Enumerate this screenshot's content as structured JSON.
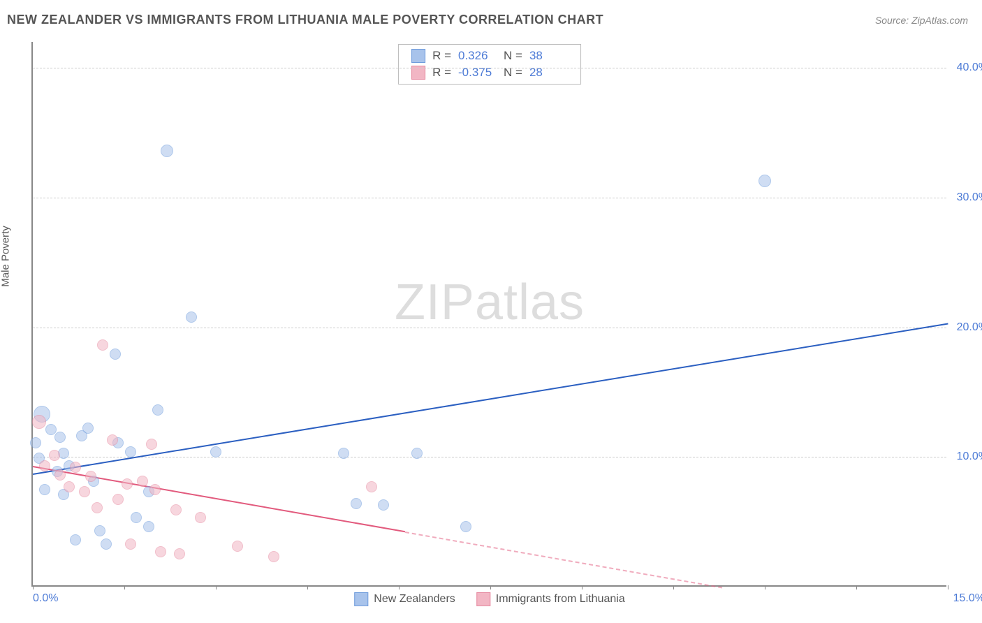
{
  "header": {
    "title": "NEW ZEALANDER VS IMMIGRANTS FROM LITHUANIA MALE POVERTY CORRELATION CHART",
    "source": "Source: ZipAtlas.com"
  },
  "y_axis_label": "Male Poverty",
  "watermark": {
    "zip": "ZIP",
    "atlas": "atlas"
  },
  "chart": {
    "type": "scatter",
    "background_color": "#ffffff",
    "grid_color": "#cccccc",
    "axis_color": "#888888",
    "xlim": [
      0,
      15
    ],
    "ylim": [
      0,
      42
    ],
    "x_ticks": [
      0,
      1.5,
      3.0,
      4.5,
      6.0,
      7.5,
      9.0,
      10.5,
      12.0,
      13.5,
      15.0
    ],
    "x_tick_labels": {
      "min": "0.0%",
      "max": "15.0%"
    },
    "y_gridlines": [
      10,
      20,
      30,
      40
    ],
    "y_tick_labels": [
      "10.0%",
      "20.0%",
      "30.0%",
      "40.0%"
    ],
    "series": [
      {
        "name": "New Zealanders",
        "fill_color": "#a8c3eb",
        "stroke_color": "#6f9cdc",
        "fill_opacity": 0.55,
        "trend": {
          "color": "#2b5fc1",
          "x1": 0,
          "y1": 8.7,
          "x2": 15,
          "y2": 20.3,
          "dash_after_x": null
        },
        "points": [
          {
            "x": 0.15,
            "y": 13.2,
            "r": 12
          },
          {
            "x": 0.05,
            "y": 11.0,
            "r": 8
          },
          {
            "x": 0.1,
            "y": 9.8,
            "r": 8
          },
          {
            "x": 0.3,
            "y": 12.0,
            "r": 8
          },
          {
            "x": 0.45,
            "y": 11.4,
            "r": 8
          },
          {
            "x": 0.5,
            "y": 10.2,
            "r": 8
          },
          {
            "x": 0.4,
            "y": 8.8,
            "r": 8
          },
          {
            "x": 0.2,
            "y": 7.4,
            "r": 8
          },
          {
            "x": 0.5,
            "y": 7.0,
            "r": 8
          },
          {
            "x": 0.6,
            "y": 9.2,
            "r": 8
          },
          {
            "x": 0.8,
            "y": 11.5,
            "r": 8
          },
          {
            "x": 0.9,
            "y": 12.1,
            "r": 8
          },
          {
            "x": 1.0,
            "y": 8.0,
            "r": 8
          },
          {
            "x": 1.1,
            "y": 4.2,
            "r": 8
          },
          {
            "x": 1.2,
            "y": 3.2,
            "r": 8
          },
          {
            "x": 0.7,
            "y": 3.5,
            "r": 8
          },
          {
            "x": 1.4,
            "y": 11.0,
            "r": 8
          },
          {
            "x": 1.35,
            "y": 17.8,
            "r": 8
          },
          {
            "x": 1.6,
            "y": 10.3,
            "r": 8
          },
          {
            "x": 1.7,
            "y": 5.2,
            "r": 8
          },
          {
            "x": 1.9,
            "y": 7.2,
            "r": 8
          },
          {
            "x": 2.05,
            "y": 13.5,
            "r": 8
          },
          {
            "x": 1.9,
            "y": 4.5,
            "r": 8
          },
          {
            "x": 2.2,
            "y": 33.5,
            "r": 9
          },
          {
            "x": 2.6,
            "y": 20.7,
            "r": 8
          },
          {
            "x": 3.0,
            "y": 10.3,
            "r": 8
          },
          {
            "x": 5.1,
            "y": 10.2,
            "r": 8
          },
          {
            "x": 5.3,
            "y": 6.3,
            "r": 8
          },
          {
            "x": 5.75,
            "y": 6.2,
            "r": 8
          },
          {
            "x": 6.3,
            "y": 10.2,
            "r": 8
          },
          {
            "x": 7.1,
            "y": 4.5,
            "r": 8
          },
          {
            "x": 12.0,
            "y": 31.2,
            "r": 9
          }
        ]
      },
      {
        "name": "Immigrants from Lithuania",
        "fill_color": "#f2b6c4",
        "stroke_color": "#e68aa0",
        "fill_opacity": 0.55,
        "trend": {
          "color": "#e25a7d",
          "x1": 0,
          "y1": 9.3,
          "x2": 11.3,
          "y2": 0.0,
          "dash_after_x": 6.1
        },
        "points": [
          {
            "x": 0.1,
            "y": 12.6,
            "r": 10
          },
          {
            "x": 0.2,
            "y": 9.2,
            "r": 8
          },
          {
            "x": 0.35,
            "y": 10.0,
            "r": 8
          },
          {
            "x": 0.45,
            "y": 8.5,
            "r": 8
          },
          {
            "x": 0.6,
            "y": 7.6,
            "r": 8
          },
          {
            "x": 0.7,
            "y": 9.1,
            "r": 8
          },
          {
            "x": 0.85,
            "y": 7.2,
            "r": 8
          },
          {
            "x": 0.95,
            "y": 8.4,
            "r": 8
          },
          {
            "x": 1.05,
            "y": 6.0,
            "r": 8
          },
          {
            "x": 1.15,
            "y": 18.5,
            "r": 8
          },
          {
            "x": 1.3,
            "y": 11.2,
            "r": 8
          },
          {
            "x": 1.4,
            "y": 6.6,
            "r": 8
          },
          {
            "x": 1.55,
            "y": 7.8,
            "r": 8
          },
          {
            "x": 1.6,
            "y": 3.2,
            "r": 8
          },
          {
            "x": 1.8,
            "y": 8.0,
            "r": 8
          },
          {
            "x": 1.95,
            "y": 10.9,
            "r": 8
          },
          {
            "x": 2.0,
            "y": 7.4,
            "r": 8
          },
          {
            "x": 2.1,
            "y": 2.6,
            "r": 8
          },
          {
            "x": 2.35,
            "y": 5.8,
            "r": 8
          },
          {
            "x": 2.4,
            "y": 2.4,
            "r": 8
          },
          {
            "x": 2.75,
            "y": 5.2,
            "r": 8
          },
          {
            "x": 3.35,
            "y": 3.0,
            "r": 8
          },
          {
            "x": 3.95,
            "y": 2.2,
            "r": 8
          },
          {
            "x": 5.55,
            "y": 7.6,
            "r": 8
          }
        ]
      }
    ]
  },
  "stats": {
    "rows": [
      {
        "swatch_fill": "#a8c3eb",
        "swatch_stroke": "#6f9cdc",
        "r_label": "R =",
        "r_val": "0.326",
        "n_label": "N =",
        "n_val": "38"
      },
      {
        "swatch_fill": "#f2b6c4",
        "swatch_stroke": "#e68aa0",
        "r_label": "R =",
        "r_val": "-0.375",
        "n_label": "N =",
        "n_val": "28"
      }
    ]
  },
  "legend": {
    "items": [
      {
        "swatch_fill": "#a8c3eb",
        "swatch_stroke": "#6f9cdc",
        "label": "New Zealanders"
      },
      {
        "swatch_fill": "#f2b6c4",
        "swatch_stroke": "#e68aa0",
        "label": "Immigrants from Lithuania"
      }
    ]
  }
}
